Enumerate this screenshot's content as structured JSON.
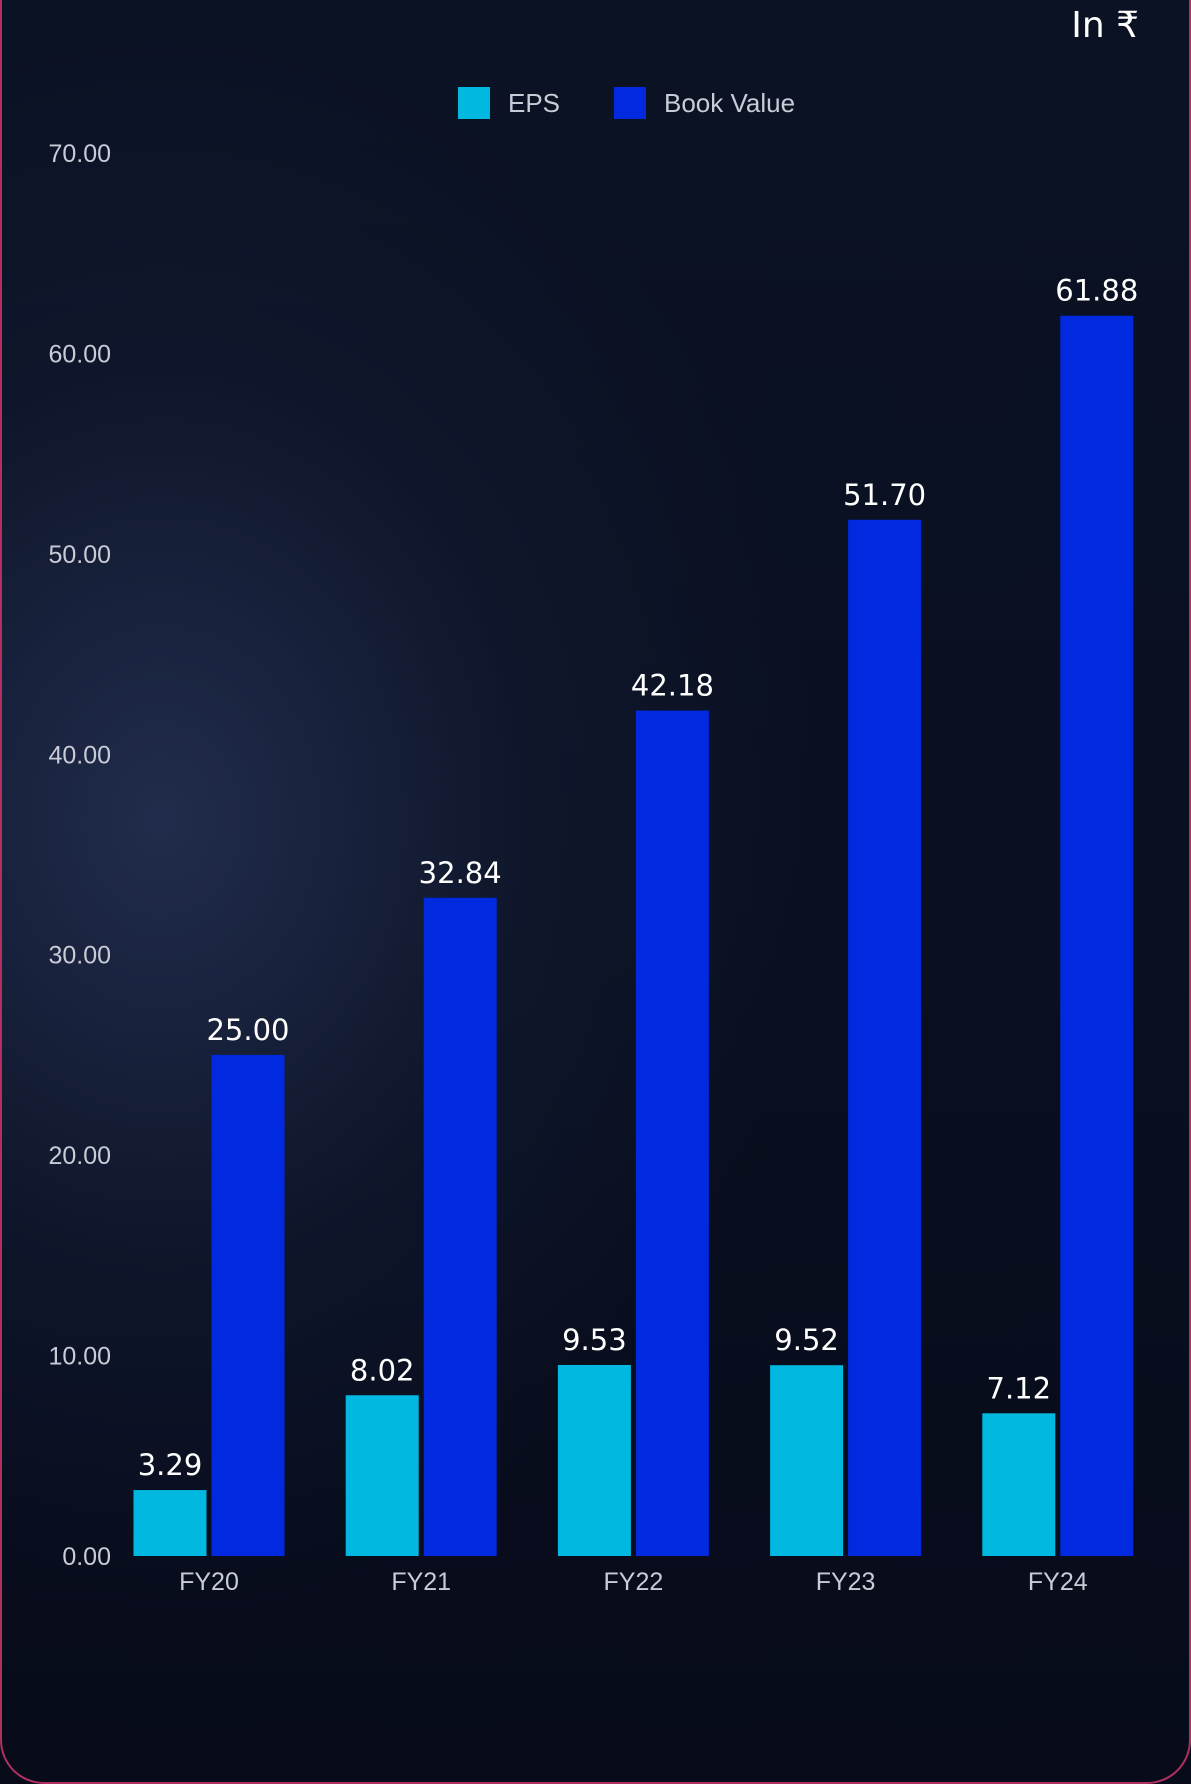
{
  "unit_label": "In ₹",
  "chart_data": {
    "type": "bar",
    "categories": [
      "FY20",
      "FY21",
      "FY22",
      "FY23",
      "FY24"
    ],
    "series": [
      {
        "name": "EPS",
        "color": "#00b8e0",
        "values": [
          3.29,
          8.02,
          9.53,
          9.52,
          7.12
        ],
        "labels": [
          "3.29",
          "8.02",
          "9.53",
          "9.52",
          "7.12"
        ]
      },
      {
        "name": "Book Value",
        "color": "#0029e0",
        "values": [
          25.0,
          32.84,
          42.18,
          51.7,
          61.88
        ],
        "labels": [
          "25.00",
          "32.84",
          "42.18",
          "51.70",
          "61.88"
        ]
      }
    ],
    "ylim": [
      0,
      70
    ],
    "yticks": [
      "0.00",
      "10.00",
      "20.00",
      "30.00",
      "40.00",
      "50.00",
      "60.00",
      "70.00"
    ],
    "title": "",
    "xlabel": "",
    "ylabel": "",
    "legend_position": "top-center",
    "grid": false
  }
}
